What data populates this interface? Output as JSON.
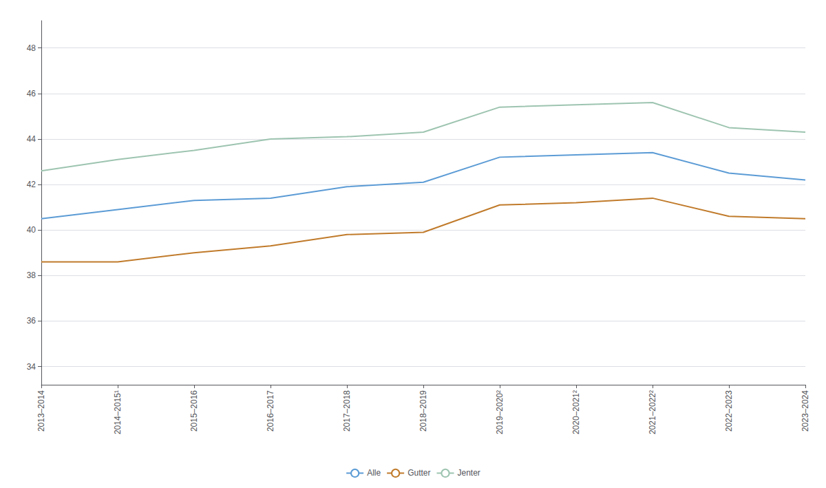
{
  "chart_data": {
    "type": "line",
    "categories": [
      "2013–2014",
      "2014–2015¹",
      "2015–2016",
      "2016–2017",
      "2017–2018",
      "2018–2019",
      "2019–2020²",
      "2020–2021²",
      "2021–2022²",
      "2022–2023",
      "2023–2024"
    ],
    "series": [
      {
        "name": "Alle",
        "color": "#5B9BD5",
        "values": [
          40.5,
          40.9,
          41.3,
          41.4,
          41.9,
          42.1,
          43.2,
          43.3,
          43.4,
          42.5,
          42.2
        ]
      },
      {
        "name": "Gutter",
        "color": "#C07A2A",
        "values": [
          38.6,
          38.6,
          39.0,
          39.3,
          39.8,
          39.9,
          41.1,
          41.2,
          41.4,
          40.6,
          40.5
        ]
      },
      {
        "name": "Jenter",
        "color": "#9DC4B0",
        "values": [
          42.6,
          43.1,
          43.5,
          44.0,
          44.1,
          44.3,
          45.4,
          45.5,
          45.6,
          44.5,
          44.3
        ]
      }
    ],
    "ylim": [
      33.2,
      49.2
    ],
    "yticks": [
      34,
      36,
      38,
      40,
      42,
      44,
      46,
      48
    ],
    "grid": true,
    "legend": "bottom"
  }
}
